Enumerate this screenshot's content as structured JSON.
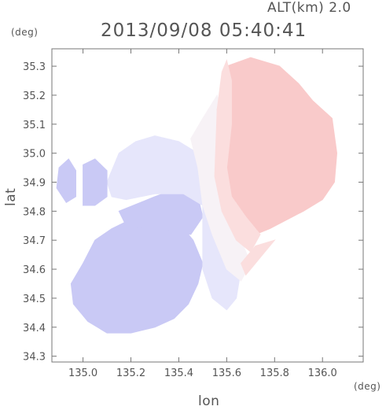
{
  "header": {
    "altitude_label": "ALT(km) 2.0",
    "timestamp": "2013/09/08 05:40:41"
  },
  "axes": {
    "x_unit": "(deg)",
    "y_unit": "(deg)",
    "x_label": "lon",
    "y_label": "lat"
  },
  "chart_data": {
    "type": "heatmap",
    "xlim": [
      134.87,
      136.17
    ],
    "ylim": [
      34.28,
      35.36
    ],
    "x_ticks": [
      {
        "value": 135.0,
        "label": "135.0"
      },
      {
        "value": 135.2,
        "label": "135.2"
      },
      {
        "value": 135.4,
        "label": "135.4"
      },
      {
        "value": 135.6,
        "label": "135.6"
      },
      {
        "value": 135.8,
        "label": "135.8"
      },
      {
        "value": 136.0,
        "label": "136.0"
      }
    ],
    "y_ticks": [
      {
        "value": 34.3,
        "label": "34.3"
      },
      {
        "value": 34.4,
        "label": "34.4"
      },
      {
        "value": 34.5,
        "label": "34.5"
      },
      {
        "value": 34.6,
        "label": "34.6"
      },
      {
        "value": 34.7,
        "label": "34.7"
      },
      {
        "value": 34.8,
        "label": "34.8"
      },
      {
        "value": 34.9,
        "label": "34.9"
      },
      {
        "value": 35.0,
        "label": "35.0"
      },
      {
        "value": 35.1,
        "label": "35.1"
      },
      {
        "value": 35.2,
        "label": "35.2"
      },
      {
        "value": 35.3,
        "label": "35.3"
      }
    ],
    "colors": {
      "toward": "#c9c9f5",
      "toward_light": "#e6e6fb",
      "neutral": "#f7f2f6",
      "away_light": "#fbdede",
      "away": "#f9caca"
    },
    "regions": [
      {
        "name": "south-west-lobe",
        "tone": "toward",
        "polygon": [
          [
            134.95,
            34.55
          ],
          [
            135.0,
            34.62
          ],
          [
            135.05,
            34.7
          ],
          [
            135.12,
            34.74
          ],
          [
            135.22,
            34.78
          ],
          [
            135.32,
            34.78
          ],
          [
            135.4,
            34.76
          ],
          [
            135.46,
            34.7
          ],
          [
            135.5,
            34.62
          ],
          [
            135.48,
            34.55
          ],
          [
            135.44,
            34.48
          ],
          [
            135.38,
            34.43
          ],
          [
            135.3,
            34.4
          ],
          [
            135.2,
            34.38
          ],
          [
            135.1,
            34.38
          ],
          [
            135.02,
            34.42
          ],
          [
            134.96,
            34.48
          ]
        ]
      },
      {
        "name": "west-band",
        "tone": "toward",
        "polygon": [
          [
            135.15,
            34.8
          ],
          [
            135.3,
            34.85
          ],
          [
            135.4,
            34.88
          ],
          [
            135.48,
            34.85
          ],
          [
            135.5,
            34.78
          ],
          [
            135.45,
            34.72
          ],
          [
            135.32,
            34.74
          ],
          [
            135.18,
            34.75
          ]
        ]
      },
      {
        "name": "north-west-lobe",
        "tone": "toward_light",
        "polygon": [
          [
            135.1,
            34.9
          ],
          [
            135.15,
            35.0
          ],
          [
            135.22,
            35.04
          ],
          [
            135.3,
            35.06
          ],
          [
            135.4,
            35.04
          ],
          [
            135.48,
            35.0
          ],
          [
            135.52,
            34.92
          ],
          [
            135.54,
            34.85
          ],
          [
            135.5,
            34.82
          ],
          [
            135.42,
            34.86
          ],
          [
            135.3,
            34.86
          ],
          [
            135.18,
            34.84
          ],
          [
            135.12,
            34.85
          ]
        ]
      },
      {
        "name": "west-islet",
        "tone": "toward",
        "polygon": [
          [
            134.89,
            34.88
          ],
          [
            134.9,
            34.95
          ],
          [
            134.94,
            34.98
          ],
          [
            134.97,
            34.94
          ],
          [
            134.97,
            34.85
          ],
          [
            134.93,
            34.83
          ]
        ]
      },
      {
        "name": "west-arm",
        "tone": "toward",
        "polygon": [
          [
            135.0,
            34.82
          ],
          [
            135.0,
            34.96
          ],
          [
            135.05,
            34.98
          ],
          [
            135.1,
            34.94
          ],
          [
            135.1,
            34.85
          ],
          [
            135.05,
            34.82
          ]
        ]
      },
      {
        "name": "transition-zone",
        "tone": "toward_light",
        "polygon": [
          [
            135.5,
            34.82
          ],
          [
            135.56,
            34.78
          ],
          [
            135.62,
            34.7
          ],
          [
            135.66,
            34.6
          ],
          [
            135.64,
            34.5
          ],
          [
            135.6,
            34.46
          ],
          [
            135.54,
            34.5
          ],
          [
            135.5,
            34.6
          ],
          [
            135.5,
            34.72
          ]
        ]
      },
      {
        "name": "neutral-band",
        "tone": "neutral",
        "polygon": [
          [
            135.45,
            35.05
          ],
          [
            135.5,
            35.12
          ],
          [
            135.56,
            35.2
          ],
          [
            135.6,
            35.1
          ],
          [
            135.58,
            34.98
          ],
          [
            135.56,
            34.88
          ],
          [
            135.6,
            34.8
          ],
          [
            135.66,
            34.7
          ],
          [
            135.7,
            34.62
          ],
          [
            135.66,
            34.56
          ],
          [
            135.6,
            34.6
          ],
          [
            135.54,
            34.72
          ],
          [
            135.5,
            34.82
          ],
          [
            135.48,
            34.95
          ]
        ]
      },
      {
        "name": "north-east-lobe",
        "tone": "away",
        "polygon": [
          [
            135.6,
            35.3
          ],
          [
            135.7,
            35.33
          ],
          [
            135.82,
            35.3
          ],
          [
            135.9,
            35.24
          ],
          [
            135.96,
            35.18
          ],
          [
            136.04,
            35.12
          ],
          [
            136.06,
            35.0
          ],
          [
            136.05,
            34.9
          ],
          [
            136.0,
            34.84
          ],
          [
            135.92,
            34.8
          ],
          [
            135.85,
            34.77
          ],
          [
            135.78,
            34.74
          ],
          [
            135.72,
            34.72
          ],
          [
            135.64,
            34.76
          ],
          [
            135.58,
            34.84
          ],
          [
            135.56,
            34.95
          ],
          [
            135.58,
            35.05
          ],
          [
            135.56,
            35.15
          ],
          [
            135.58,
            35.25
          ]
        ]
      },
      {
        "name": "north-east-fringe",
        "tone": "away_light",
        "polygon": [
          [
            135.56,
            35.15
          ],
          [
            135.58,
            35.28
          ],
          [
            135.6,
            35.32
          ],
          [
            135.62,
            35.25
          ],
          [
            135.62,
            35.1
          ],
          [
            135.6,
            34.95
          ],
          [
            135.62,
            34.85
          ],
          [
            135.68,
            34.78
          ],
          [
            135.74,
            34.72
          ],
          [
            135.7,
            34.66
          ],
          [
            135.64,
            34.7
          ],
          [
            135.58,
            34.8
          ],
          [
            135.55,
            34.92
          ]
        ]
      },
      {
        "name": "south-east-fringe",
        "tone": "away_light",
        "polygon": [
          [
            135.66,
            34.62
          ],
          [
            135.72,
            34.68
          ],
          [
            135.8,
            34.7
          ],
          [
            135.74,
            34.64
          ],
          [
            135.68,
            34.58
          ]
        ]
      }
    ]
  }
}
